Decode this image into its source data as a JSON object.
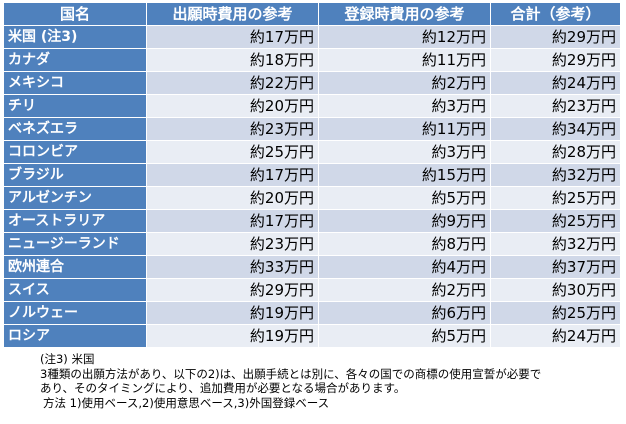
{
  "table": {
    "headers": [
      "国名",
      "出願時費用の参考",
      "登録時費用の参考",
      "合計（参考）"
    ],
    "rows": [
      [
        "米国 (注3)",
        "約17万円",
        "約12万円",
        "約29万円"
      ],
      [
        "カナダ",
        "約18万円",
        "約11万円",
        "約29万円"
      ],
      [
        "メキシコ",
        "約22万円",
        "約2万円",
        "約24万円"
      ],
      [
        "チリ",
        "約20万円",
        "約3万円",
        "約23万円"
      ],
      [
        "ベネズエラ",
        "約23万円",
        "約11万円",
        "約34万円"
      ],
      [
        "コロンビア",
        "約25万円",
        "約3万円",
        "約28万円"
      ],
      [
        "ブラジル",
        "約17万円",
        "約15万円",
        "約32万円"
      ],
      [
        "アルゼンチン",
        "約20万円",
        "約5万円",
        "約25万円"
      ],
      [
        "オーストラリア",
        "約17万円",
        "約9万円",
        "約25万円"
      ],
      [
        "ニュージーランド",
        "約23万円",
        "約8万円",
        "約32万円"
      ],
      [
        "欧州連合",
        "約33万円",
        "約4万円",
        "約37万円"
      ],
      [
        "スイス",
        "約29万円",
        "約2万円",
        "約30万円"
      ],
      [
        "ノルウェー",
        "約19万円",
        "約6万円",
        "約25万円"
      ],
      [
        "ロシア",
        "約19万円",
        "約5万円",
        "約24万円"
      ]
    ]
  },
  "notes": {
    "title": "(注3) 米国",
    "line1": "3種類の出願方法があり、以下の2)は、出願手続とは別に、各々の国での商標の使用宣誓が必要で",
    "line2": "あり、そのタイミングにより、追加費用が必要となる場合があります。",
    "line3": "方法 1)使用ベース,2)使用意思ベース,3)外国登録ベース"
  },
  "colors": {
    "header_bg": "#4f81bd",
    "row_band_1": "#d0d8e8",
    "row_band_2": "#e9edf4"
  }
}
